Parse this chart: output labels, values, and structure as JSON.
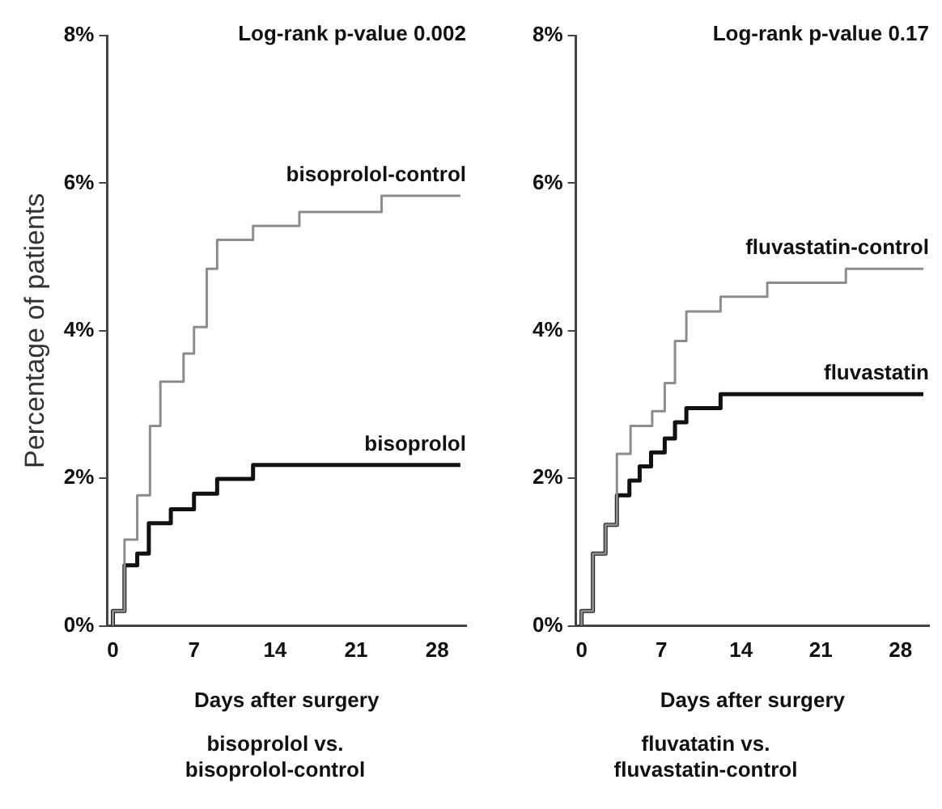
{
  "chart_data": [
    {
      "type": "step",
      "ylabel": "Percentage of patients",
      "xlabel": "Days after surgery",
      "annotations": [
        "Log-rank p-value 0.002",
        "bisoprolol vs. bisoprolol-control"
      ],
      "xlim": [
        -0.5,
        30.5
      ],
      "xticks": [
        0,
        7,
        14,
        21,
        28
      ],
      "ylim": [
        0,
        8
      ],
      "yticks": [
        {
          "value": 0,
          "label": "0%"
        },
        {
          "value": 2,
          "label": "2%"
        },
        {
          "value": 4,
          "label": "4%"
        },
        {
          "value": 6,
          "label": "6%"
        },
        {
          "value": 8,
          "label": "8%"
        }
      ],
      "grid": false,
      "legend": false,
      "marker": "none",
      "series": [
        {
          "name": "bisoprolol-control",
          "color": "#8c8c8c",
          "x": [
            0,
            0,
            1,
            2.1,
            3.2,
            4.1,
            6.1,
            7,
            8.1,
            9,
            12.1,
            16.1,
            23.2,
            30
          ],
          "values": [
            0,
            0.2,
            1.17,
            1.77,
            2.71,
            3.31,
            3.69,
            4.05,
            4.84,
            5.23,
            5.42,
            5.61,
            5.83,
            5.83
          ]
        },
        {
          "name": "bisoprolol",
          "color": "#111111",
          "x": [
            0,
            0,
            1,
            2.1,
            3.1,
            5,
            7,
            9,
            12.1,
            30
          ],
          "values": [
            0,
            0.2,
            0.82,
            0.98,
            1.39,
            1.58,
            1.79,
            1.99,
            2.18,
            2.18
          ]
        }
      ]
    },
    {
      "type": "step",
      "xlabel": "Days after surgery",
      "annotations": [
        "Log-rank p-value 0.17",
        "fluvatatin vs. fluvastatin-control"
      ],
      "xlim": [
        -0.5,
        30.5
      ],
      "xticks": [
        0,
        7,
        14,
        21,
        28
      ],
      "ylim": [
        0,
        8
      ],
      "yticks": [
        {
          "value": 0,
          "label": "0%"
        },
        {
          "value": 2,
          "label": "2%"
        },
        {
          "value": 4,
          "label": "4%"
        },
        {
          "value": 6,
          "label": "6%"
        },
        {
          "value": 8,
          "label": "8%"
        }
      ],
      "grid": false,
      "legend": false,
      "marker": "none",
      "series": [
        {
          "name": "fluvastatin-control",
          "color": "#8c8c8c",
          "x": [
            0,
            0,
            1,
            2.1,
            3.1,
            4.3,
            6.2,
            7.3,
            8.2,
            9.2,
            12.2,
            16.3,
            23.2,
            30
          ],
          "values": [
            0,
            0.2,
            0.98,
            1.37,
            2.33,
            2.71,
            2.91,
            3.29,
            3.86,
            4.26,
            4.46,
            4.65,
            4.84,
            4.84
          ]
        },
        {
          "name": "fluvastatin",
          "color": "#111111",
          "x": [
            0,
            0,
            1,
            2.1,
            3.1,
            4.2,
            5.1,
            6.1,
            7.3,
            8.2,
            9.2,
            12.2,
            30
          ],
          "values": [
            0,
            0.2,
            0.98,
            1.37,
            1.77,
            1.97,
            2.16,
            2.35,
            2.54,
            2.76,
            2.95,
            3.14,
            3.14
          ]
        }
      ]
    }
  ]
}
